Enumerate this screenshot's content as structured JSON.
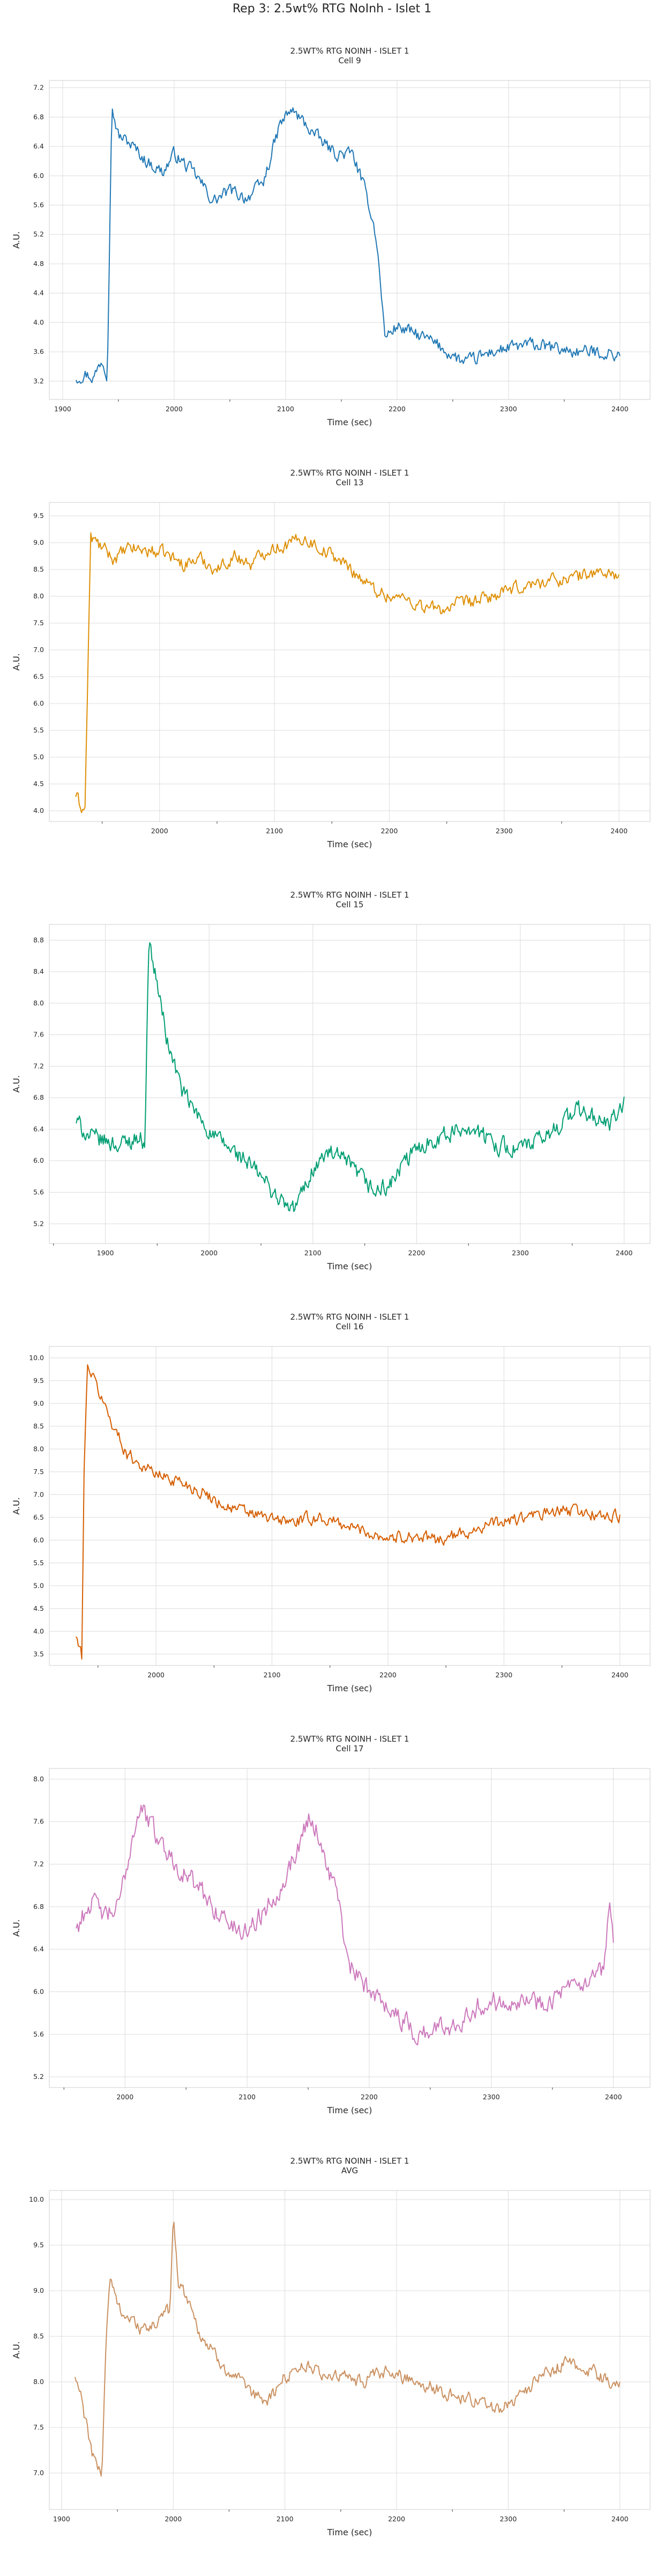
{
  "suptitle": "Rep 3: 2.5wt% RTG NoInh - Islet 1",
  "chart_data": [
    {
      "type": "line",
      "title": "2.5WT% RTG NOINH - ISLET 1",
      "subtitle": "Cell 9",
      "xlabel": "Time (sec)",
      "ylabel": "A.U.",
      "xlim": [
        1888,
        2427
      ],
      "ylim": [
        2.95,
        7.3
      ],
      "xticks": [
        1900,
        2000,
        2100,
        2200,
        2300,
        2400
      ],
      "yticks": [
        3.2,
        3.6,
        4.0,
        4.4,
        4.8,
        5.2,
        5.6,
        6.0,
        6.4,
        6.8,
        7.2
      ],
      "ytick_labels": [
        "3.2",
        "3.6",
        "4.0",
        "4.4",
        "4.8",
        "5.2",
        "5.6",
        "6.0",
        "6.4",
        "6.8",
        "7.2"
      ],
      "color": "#1f77b4",
      "grid": true,
      "x_range": [
        1912,
        2400
      ],
      "anchors": [
        [
          1912,
          3.25
        ],
        [
          1920,
          3.3
        ],
        [
          1928,
          3.25
        ],
        [
          1935,
          3.5
        ],
        [
          1940,
          3.3
        ],
        [
          1944,
          6.95
        ],
        [
          1950,
          6.55
        ],
        [
          1960,
          6.45
        ],
        [
          1975,
          6.2
        ],
        [
          1990,
          6.05
        ],
        [
          2000,
          6.3
        ],
        [
          2020,
          6.0
        ],
        [
          2035,
          5.65
        ],
        [
          2050,
          5.8
        ],
        [
          2065,
          5.7
        ],
        [
          2080,
          5.9
        ],
        [
          2095,
          6.7
        ],
        [
          2105,
          6.9
        ],
        [
          2115,
          6.75
        ],
        [
          2130,
          6.5
        ],
        [
          2145,
          6.3
        ],
        [
          2160,
          6.3
        ],
        [
          2168,
          5.95
        ],
        [
          2175,
          5.6
        ],
        [
          2181,
          5.2
        ],
        [
          2186,
          4.4
        ],
        [
          2189,
          3.8
        ],
        [
          2200,
          3.95
        ],
        [
          2215,
          3.85
        ],
        [
          2230,
          3.75
        ],
        [
          2245,
          3.6
        ],
        [
          2260,
          3.45
        ],
        [
          2270,
          3.5
        ],
        [
          2285,
          3.6
        ],
        [
          2300,
          3.65
        ],
        [
          2320,
          3.7
        ],
        [
          2340,
          3.65
        ],
        [
          2360,
          3.6
        ],
        [
          2380,
          3.6
        ],
        [
          2400,
          3.55
        ]
      ],
      "noise": 0.14,
      "points": 480
    },
    {
      "type": "line",
      "title": "2.5WT% RTG NOINH - ISLET 1",
      "subtitle": "Cell 13",
      "xlabel": "Time (sec)",
      "ylabel": "A.U.",
      "xlim": [
        1904,
        2427
      ],
      "ylim": [
        3.8,
        9.75
      ],
      "xticks": [
        2000,
        2100,
        2200,
        2300,
        2400
      ],
      "yticks": [
        4.0,
        4.5,
        5.0,
        5.5,
        6.0,
        6.5,
        7.0,
        7.5,
        8.0,
        8.5,
        9.0,
        9.5
      ],
      "ytick_labels": [
        "4.0",
        "4.5",
        "5.0",
        "5.5",
        "6.0",
        "6.5",
        "7.0",
        "7.5",
        "8.0",
        "8.5",
        "9.0",
        "9.5"
      ],
      "color": "#de8f05",
      "grid": true,
      "x_range": [
        1927,
        2400
      ],
      "anchors": [
        [
          1927,
          4.3
        ],
        [
          1931,
          4.1
        ],
        [
          1935,
          4.0
        ],
        [
          1938,
          7.0
        ],
        [
          1940,
          9.1
        ],
        [
          1950,
          8.9
        ],
        [
          1960,
          8.7
        ],
        [
          1975,
          8.9
        ],
        [
          1990,
          8.85
        ],
        [
          2005,
          8.8
        ],
        [
          2020,
          8.6
        ],
        [
          2035,
          8.7
        ],
        [
          2050,
          8.5
        ],
        [
          2065,
          8.75
        ],
        [
          2080,
          8.6
        ],
        [
          2095,
          8.9
        ],
        [
          2110,
          8.95
        ],
        [
          2125,
          9.1
        ],
        [
          2140,
          8.9
        ],
        [
          2155,
          8.7
        ],
        [
          2170,
          8.45
        ],
        [
          2185,
          8.15
        ],
        [
          2200,
          8.0
        ],
        [
          2215,
          7.95
        ],
        [
          2230,
          7.8
        ],
        [
          2245,
          7.75
        ],
        [
          2260,
          7.85
        ],
        [
          2275,
          7.9
        ],
        [
          2290,
          8.0
        ],
        [
          2305,
          8.1
        ],
        [
          2320,
          8.2
        ],
        [
          2340,
          8.3
        ],
        [
          2360,
          8.35
        ],
        [
          2380,
          8.45
        ],
        [
          2400,
          8.4
        ]
      ],
      "noise": 0.2,
      "points": 470
    },
    {
      "type": "line",
      "title": "2.5WT% RTG NOINH - ISLET 1",
      "subtitle": "Cell 15",
      "xlabel": "Time (sec)",
      "ylabel": "A.U.",
      "xlim": [
        1846,
        2425
      ],
      "ylim": [
        4.95,
        9.0
      ],
      "xticks": [
        1900,
        2000,
        2100,
        2200,
        2300,
        2400
      ],
      "yticks": [
        5.2,
        5.6,
        6.0,
        6.4,
        6.8,
        7.2,
        7.6,
        8.0,
        8.4,
        8.8
      ],
      "ytick_labels": [
        "5.2",
        "5.6",
        "6.0",
        "6.4",
        "6.8",
        "7.2",
        "7.6",
        "8.0",
        "8.4",
        "8.8"
      ],
      "color": "#029e73",
      "grid": true,
      "x_range": [
        1872,
        2400
      ],
      "anchors": [
        [
          1872,
          6.5
        ],
        [
          1885,
          6.3
        ],
        [
          1900,
          6.25
        ],
        [
          1915,
          6.2
        ],
        [
          1930,
          6.3
        ],
        [
          1938,
          6.25
        ],
        [
          1940,
          7.5
        ],
        [
          1942,
          8.8
        ],
        [
          1946,
          8.5
        ],
        [
          1952,
          8.1
        ],
        [
          1960,
          7.5
        ],
        [
          1975,
          6.85
        ],
        [
          1990,
          6.55
        ],
        [
          2005,
          6.3
        ],
        [
          2020,
          6.15
        ],
        [
          2035,
          6.0
        ],
        [
          2050,
          5.8
        ],
        [
          2065,
          5.55
        ],
        [
          2080,
          5.35
        ],
        [
          2090,
          5.6
        ],
        [
          2100,
          5.9
        ],
        [
          2115,
          6.1
        ],
        [
          2130,
          6.0
        ],
        [
          2145,
          5.8
        ],
        [
          2160,
          5.6
        ],
        [
          2175,
          5.7
        ],
        [
          2190,
          6.0
        ],
        [
          2205,
          6.2
        ],
        [
          2220,
          6.3
        ],
        [
          2235,
          6.35
        ],
        [
          2250,
          6.45
        ],
        [
          2265,
          6.3
        ],
        [
          2280,
          6.2
        ],
        [
          2295,
          6.15
        ],
        [
          2310,
          6.2
        ],
        [
          2325,
          6.3
        ],
        [
          2340,
          6.5
        ],
        [
          2355,
          6.65
        ],
        [
          2370,
          6.55
        ],
        [
          2385,
          6.45
        ],
        [
          2400,
          6.7
        ]
      ],
      "noise": 0.18,
      "points": 530
    },
    {
      "type": "line",
      "title": "2.5WT% RTG NOINH - ISLET 1",
      "subtitle": "Cell 16",
      "xlabel": "Time (sec)",
      "ylabel": "A.U.",
      "xlim": [
        1908,
        2426
      ],
      "ylim": [
        3.25,
        10.25
      ],
      "xticks": [
        2000,
        2100,
        2200,
        2300,
        2400
      ],
      "yticks": [
        3.5,
        4.0,
        4.5,
        5.0,
        5.5,
        6.0,
        6.5,
        7.0,
        7.5,
        8.0,
        8.5,
        9.0,
        9.5,
        10.0
      ],
      "ytick_labels": [
        "3.5",
        "4.0",
        "4.5",
        "5.0",
        "5.5",
        "6.0",
        "6.5",
        "7.0",
        "7.5",
        "8.0",
        "8.5",
        "9.0",
        "9.5",
        "10.0"
      ],
      "color": "#d55e00",
      "grid": true,
      "x_range": [
        1931,
        2400
      ],
      "anchors": [
        [
          1931,
          3.9
        ],
        [
          1934,
          3.6
        ],
        [
          1936,
          3.45
        ],
        [
          1938,
          7.5
        ],
        [
          1941,
          9.9
        ],
        [
          1945,
          9.6
        ],
        [
          1955,
          9.0
        ],
        [
          1965,
          8.4
        ],
        [
          1975,
          7.9
        ],
        [
          1990,
          7.6
        ],
        [
          2005,
          7.4
        ],
        [
          2020,
          7.3
        ],
        [
          2040,
          7.05
        ],
        [
          2060,
          6.75
        ],
        [
          2080,
          6.6
        ],
        [
          2100,
          6.45
        ],
        [
          2120,
          6.4
        ],
        [
          2140,
          6.5
        ],
        [
          2160,
          6.35
        ],
        [
          2180,
          6.2
        ],
        [
          2200,
          6.05
        ],
        [
          2220,
          6.1
        ],
        [
          2240,
          6.0
        ],
        [
          2260,
          6.1
        ],
        [
          2280,
          6.3
        ],
        [
          2300,
          6.4
        ],
        [
          2320,
          6.5
        ],
        [
          2340,
          6.6
        ],
        [
          2360,
          6.65
        ],
        [
          2380,
          6.55
        ],
        [
          2400,
          6.5
        ]
      ],
      "noise": 0.22,
      "points": 470
    },
    {
      "type": "line",
      "title": "2.5WT% RTG NOINH - ISLET 1",
      "subtitle": "Cell 17",
      "xlabel": "Time (sec)",
      "ylabel": "A.U.",
      "xlim": [
        1938,
        2430
      ],
      "ylim": [
        5.1,
        8.1
      ],
      "xticks": [
        2000,
        2100,
        2200,
        2300,
        2400
      ],
      "yticks": [
        5.2,
        5.6,
        6.0,
        6.4,
        6.8,
        7.2,
        7.6,
        8.0
      ],
      "ytick_labels": [
        "5.2",
        "5.6",
        "6.0",
        "6.4",
        "6.8",
        "7.2",
        "7.6",
        "8.0"
      ],
      "color": "#cc78bc",
      "grid": true,
      "x_range": [
        1960,
        2400
      ],
      "anchors": [
        [
          1960,
          6.6
        ],
        [
          1972,
          6.85
        ],
        [
          1985,
          6.7
        ],
        [
          1995,
          6.8
        ],
        [
          2005,
          7.4
        ],
        [
          2012,
          7.75
        ],
        [
          2022,
          7.55
        ],
        [
          2035,
          7.3
        ],
        [
          2050,
          7.1
        ],
        [
          2065,
          6.9
        ],
        [
          2080,
          6.7
        ],
        [
          2095,
          6.55
        ],
        [
          2110,
          6.7
        ],
        [
          2125,
          6.95
        ],
        [
          2140,
          7.3
        ],
        [
          2150,
          7.65
        ],
        [
          2158,
          7.5
        ],
        [
          2165,
          7.2
        ],
        [
          2175,
          6.9
        ],
        [
          2181,
          6.3
        ],
        [
          2195,
          6.05
        ],
        [
          2210,
          5.95
        ],
        [
          2225,
          5.75
        ],
        [
          2240,
          5.6
        ],
        [
          2255,
          5.65
        ],
        [
          2270,
          5.7
        ],
        [
          2285,
          5.85
        ],
        [
          2300,
          5.9
        ],
        [
          2320,
          5.95
        ],
        [
          2340,
          5.9
        ],
        [
          2360,
          6.0
        ],
        [
          2380,
          6.05
        ],
        [
          2392,
          6.2
        ],
        [
          2397,
          6.8
        ],
        [
          2400,
          6.5
        ]
      ],
      "noise": 0.16,
      "points": 440
    },
    {
      "type": "line",
      "title": "2.5WT% RTG NOINH - ISLET 1",
      "subtitle": "AVG",
      "xlabel": "Time (sec)",
      "ylabel": "A.U.",
      "xlim": [
        1889,
        2427
      ],
      "ylim": [
        6.6,
        10.1
      ],
      "xticks": [
        1900,
        2000,
        2100,
        2200,
        2300,
        2400
      ],
      "yticks": [
        7.0,
        7.5,
        8.0,
        8.5,
        9.0,
        9.5,
        10.0
      ],
      "ytick_labels": [
        "7.0",
        "7.5",
        "8.0",
        "8.5",
        "9.0",
        "9.5",
        "10.0"
      ],
      "color": "#ca9161",
      "grid": true,
      "x_range": [
        1912,
        2400
      ],
      "anchors": [
        [
          1912,
          8.05
        ],
        [
          1918,
          7.8
        ],
        [
          1924,
          7.4
        ],
        [
          1930,
          7.1
        ],
        [
          1936,
          7.0
        ],
        [
          1940,
          8.5
        ],
        [
          1943,
          9.15
        ],
        [
          1950,
          8.85
        ],
        [
          1960,
          8.7
        ],
        [
          1975,
          8.55
        ],
        [
          1990,
          8.7
        ],
        [
          1997,
          8.8
        ],
        [
          2000,
          9.9
        ],
        [
          2004,
          9.1
        ],
        [
          2012,
          8.95
        ],
        [
          2025,
          8.5
        ],
        [
          2040,
          8.25
        ],
        [
          2055,
          8.05
        ],
        [
          2070,
          7.85
        ],
        [
          2085,
          7.8
        ],
        [
          2100,
          8.05
        ],
        [
          2115,
          8.2
        ],
        [
          2130,
          8.1
        ],
        [
          2150,
          8.05
        ],
        [
          2170,
          8.0
        ],
        [
          2190,
          8.1
        ],
        [
          2210,
          8.05
        ],
        [
          2230,
          7.95
        ],
        [
          2250,
          7.85
        ],
        [
          2270,
          7.8
        ],
        [
          2290,
          7.7
        ],
        [
          2310,
          7.85
        ],
        [
          2330,
          8.05
        ],
        [
          2350,
          8.2
        ],
        [
          2370,
          8.15
        ],
        [
          2390,
          8.0
        ],
        [
          2400,
          7.95
        ]
      ],
      "noise": 0.12,
      "points": 480
    }
  ]
}
